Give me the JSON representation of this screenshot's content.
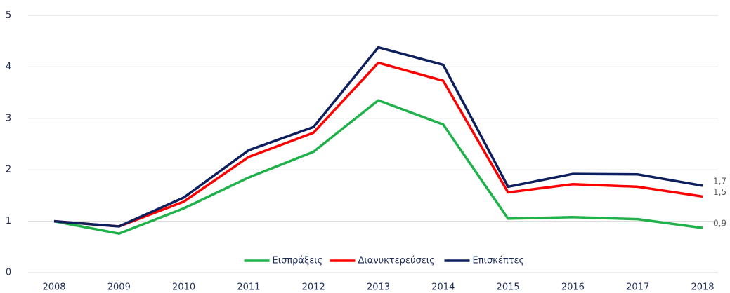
{
  "chart_data": {
    "type": "line",
    "categories": [
      "2008",
      "2009",
      "2010",
      "2011",
      "2012",
      "2013",
      "2014",
      "2015",
      "2016",
      "2017",
      "2018"
    ],
    "series": [
      {
        "name": "Εισπράξεις",
        "color": "#1fb14a",
        "values": [
          1.0,
          0.76,
          1.25,
          1.85,
          2.35,
          3.35,
          2.88,
          1.05,
          1.08,
          1.04,
          0.87
        ],
        "value_labels": [
          null,
          null,
          null,
          null,
          null,
          null,
          null,
          null,
          null,
          null,
          "0,9"
        ]
      },
      {
        "name": "Διανυκτερεύσεις",
        "color": "#ff0000",
        "values": [
          1.0,
          0.9,
          1.38,
          2.25,
          2.72,
          4.08,
          3.73,
          1.56,
          1.72,
          1.67,
          1.48
        ],
        "value_labels": [
          null,
          null,
          null,
          null,
          null,
          null,
          null,
          null,
          null,
          null,
          "1,5"
        ]
      },
      {
        "name": "Επισκέπτες",
        "color": "#0d1f5c",
        "values": [
          1.0,
          0.9,
          1.46,
          2.38,
          2.83,
          4.38,
          4.04,
          1.67,
          1.92,
          1.91,
          1.69
        ],
        "value_labels": [
          null,
          null,
          null,
          null,
          null,
          null,
          null,
          null,
          null,
          null,
          "1,7"
        ]
      }
    ],
    "ylim": [
      0,
      5
    ],
    "yticks": [
      0,
      1,
      2,
      3,
      4,
      5
    ],
    "grid": true,
    "legend": "bottom"
  }
}
